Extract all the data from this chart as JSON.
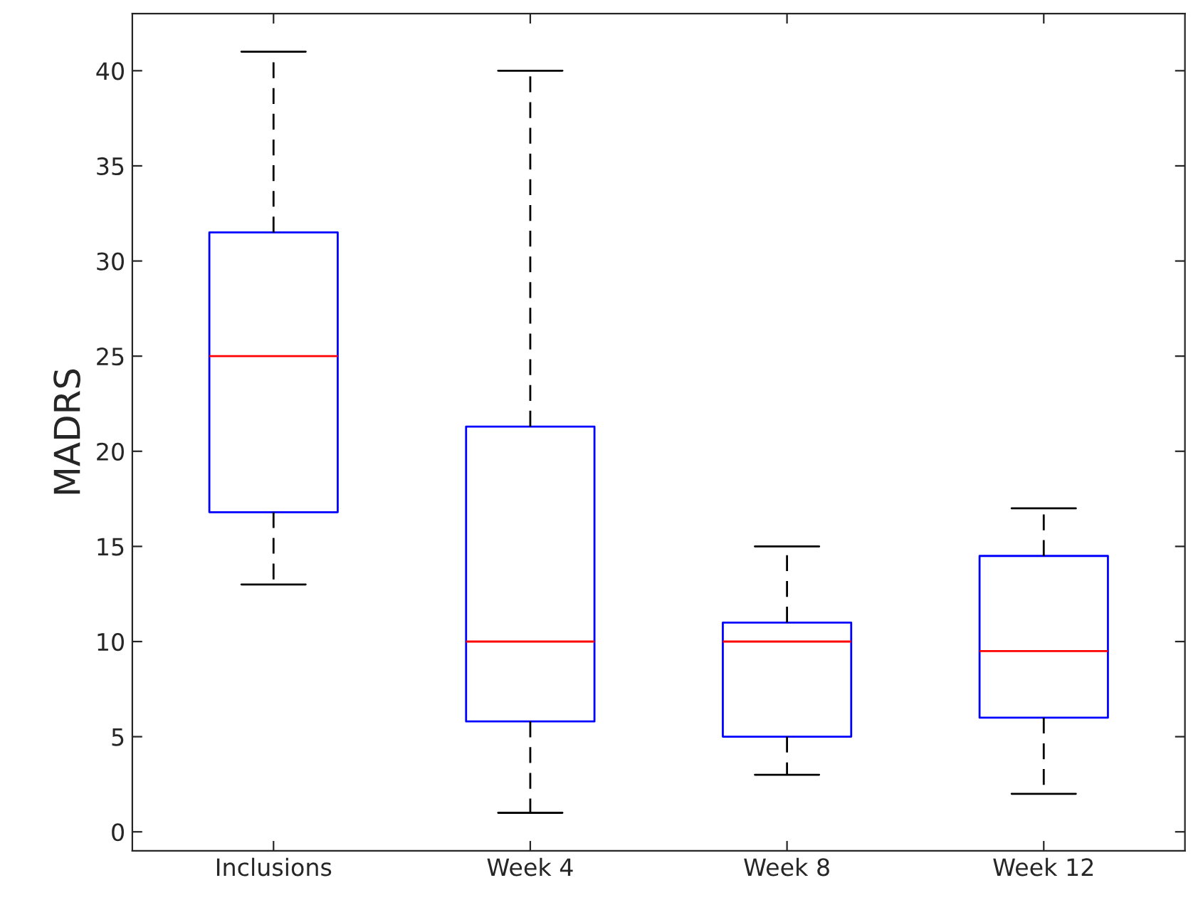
{
  "chart_data": {
    "type": "box",
    "ylabel": "MADRS",
    "categories": [
      "Inclusions",
      "Week 4",
      "Week 8",
      "Week 12"
    ],
    "boxes": [
      {
        "low": 13,
        "q1": 16.8,
        "median": 25,
        "q3": 31.5,
        "high": 41
      },
      {
        "low": 1,
        "q1": 5.8,
        "median": 10,
        "q3": 21.3,
        "high": 40
      },
      {
        "low": 3,
        "q1": 5,
        "median": 10,
        "q3": 11,
        "high": 15
      },
      {
        "low": 2,
        "q1": 6,
        "median": 9.5,
        "q3": 14.5,
        "high": 17
      }
    ],
    "color": "#0000ff",
    "ylim": [
      -1,
      43
    ],
    "yticks": [
      0,
      5,
      10,
      15,
      20,
      25,
      30,
      35,
      40
    ],
    "grid": false
  }
}
